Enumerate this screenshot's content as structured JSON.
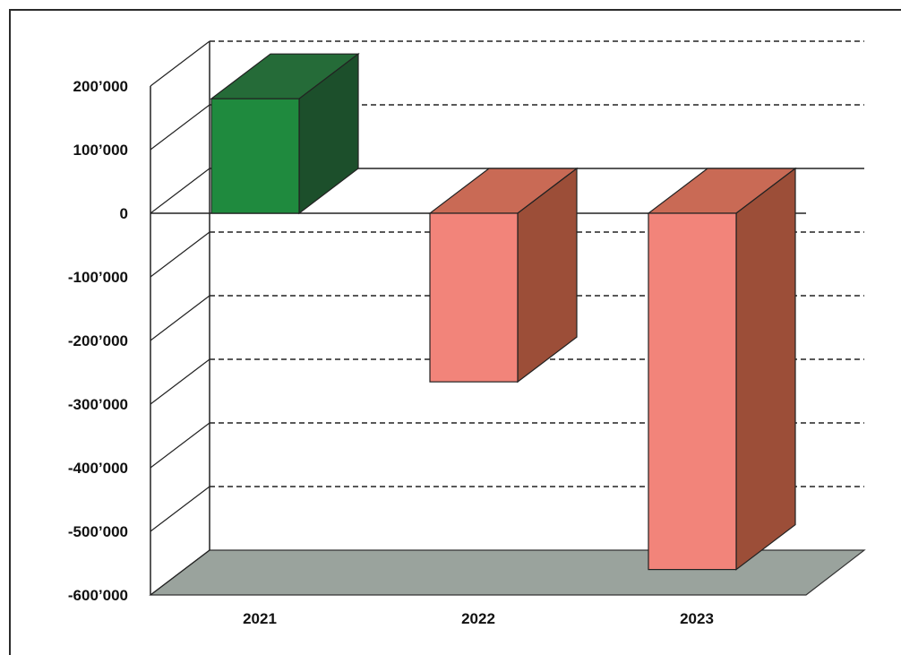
{
  "chart_data": {
    "type": "bar",
    "style": "3d-column",
    "categories": [
      "2021",
      "2022",
      "2023"
    ],
    "values": [
      180000,
      -265000,
      -560000
    ],
    "ylim": [
      -600000,
      200000
    ],
    "yticks": [
      200000,
      100000,
      0,
      -100000,
      -200000,
      -300000,
      -400000,
      -500000,
      -600000
    ],
    "ytick_labels": [
      "200’000",
      "100’000",
      "0",
      "-100’000",
      "-200’000",
      "-300’000",
      "-400’000",
      "-500’000",
      "-600’000"
    ],
    "grid": true,
    "grid_style": "dashed",
    "legend": "none",
    "title": "",
    "xlabel": "",
    "ylabel": "",
    "colors": {
      "positive_front": "#1f8a3e",
      "positive_side": "#1c4f2b",
      "positive_top": "#256b38",
      "negative_front": "#f2847a",
      "negative_side": "#9c4e38",
      "negative_top": "#c96a55",
      "floor": "#9aa39d"
    }
  }
}
